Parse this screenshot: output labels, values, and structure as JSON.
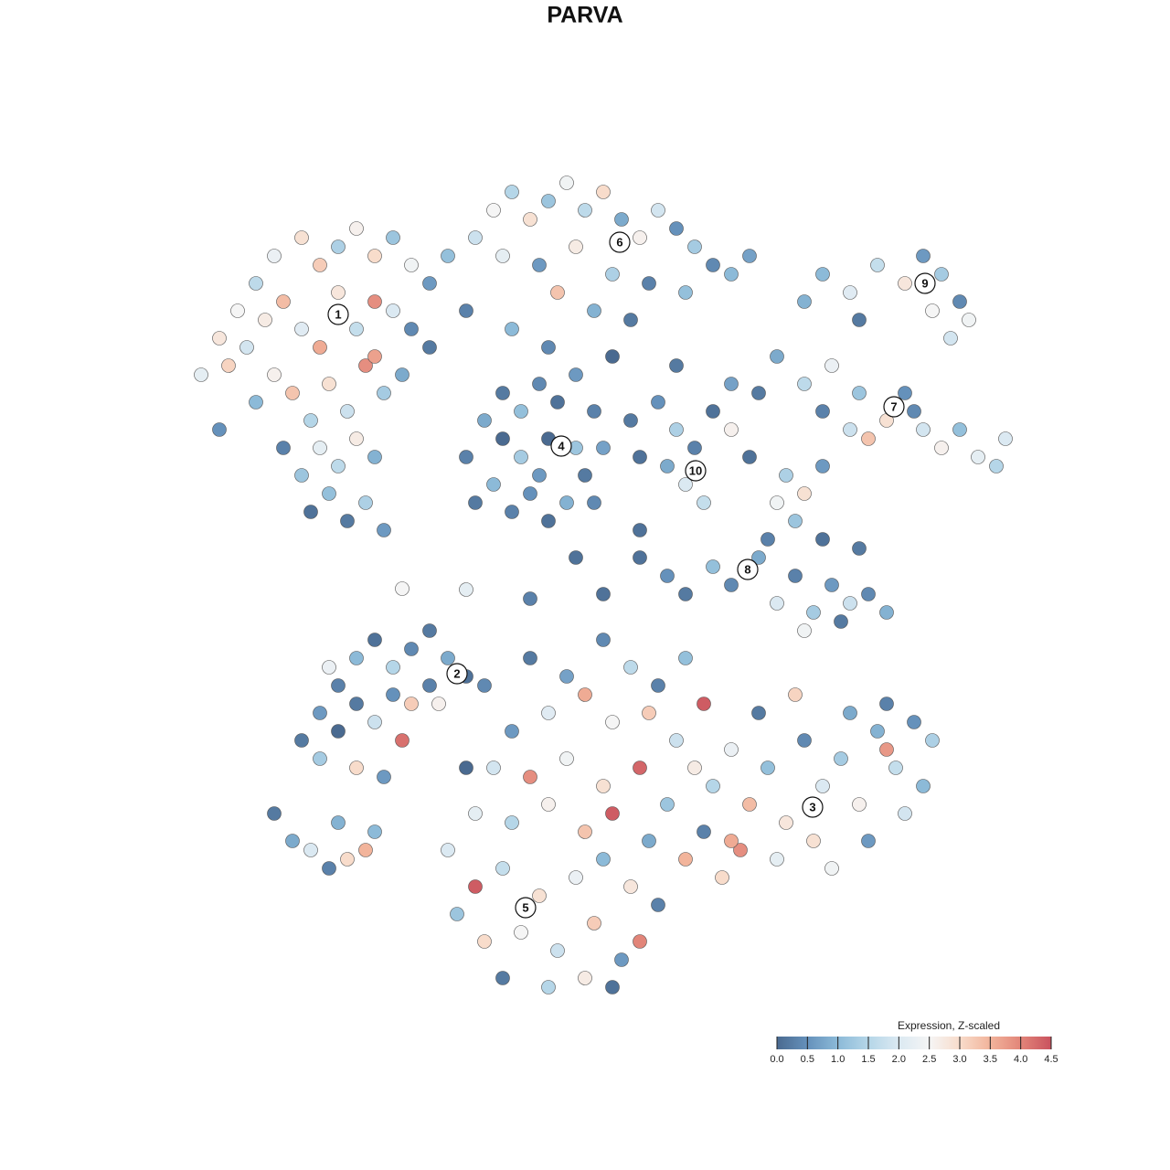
{
  "chart_data": {
    "type": "scatter",
    "title": "PARVA",
    "xlim": [
      -64,
      64
    ],
    "ylim": [
      -64,
      64
    ],
    "x": [
      -42,
      -40,
      -38,
      -36,
      -34,
      -31,
      -29,
      -27,
      -25,
      -23,
      -21,
      -19,
      -17,
      -15,
      -39,
      -37,
      -35,
      -33,
      -31,
      -29,
      -27,
      -25,
      -23,
      -21,
      -19,
      -17,
      -36,
      -34,
      -32,
      -30,
      -28,
      -26,
      -24,
      -22,
      -20,
      -33,
      -31,
      -29,
      -27,
      -25,
      -23,
      -30,
      -28,
      -26,
      -24,
      -22,
      -40,
      -23,
      -12,
      -10,
      -8,
      -6,
      -4,
      -2,
      0,
      2,
      4,
      6,
      8,
      10,
      12,
      14,
      16,
      18,
      -9,
      -5,
      -1,
      3,
      7,
      11,
      -3,
      1,
      5,
      -13,
      -8,
      -4,
      26,
      29,
      32,
      35,
      37,
      39,
      41,
      42,
      40,
      24,
      30,
      38,
      21,
      24,
      27,
      30,
      33,
      35,
      37,
      39,
      41,
      43,
      45,
      46,
      26,
      29,
      31,
      36,
      19,
      16,
      22,
      24,
      26,
      23,
      20,
      21,
      -13,
      -11,
      -9,
      -7,
      -5,
      -3,
      -1,
      1,
      2,
      0,
      -2,
      -4,
      -6,
      -8,
      -10,
      -12,
      -7,
      -4,
      -1,
      -5,
      -9,
      1,
      5,
      8,
      10,
      12,
      14,
      16,
      11,
      13,
      9,
      6,
      3,
      10,
      18,
      6,
      9,
      11,
      14,
      16,
      19,
      21,
      23,
      25,
      27,
      29,
      31,
      33,
      24,
      28,
      26,
      30,
      2,
      -13,
      -6,
      -31,
      -29,
      -27,
      -25,
      -23,
      -21,
      -19,
      -17,
      -15,
      -13,
      -29,
      -27,
      -25,
      -23,
      -21,
      -19,
      -20,
      -25,
      -22,
      -17,
      -28,
      -16,
      -34,
      -32,
      -30,
      -28,
      -26,
      -24,
      -23,
      -27,
      14,
      16,
      18,
      20,
      22,
      24,
      26,
      28,
      30,
      32,
      34,
      36,
      38,
      33,
      29,
      25,
      21,
      17,
      15,
      13,
      31,
      27,
      35,
      37,
      23,
      19,
      16,
      33,
      -6,
      -2,
      2,
      5,
      8,
      11,
      13,
      -4,
      0,
      3,
      7,
      10,
      12,
      -8,
      -10,
      -6,
      -2,
      2,
      6,
      9,
      -12,
      -8,
      -4,
      0,
      3,
      7,
      11,
      -15,
      -12,
      -9,
      -5,
      -1,
      2,
      5,
      8,
      -14,
      -11,
      -7,
      -3,
      1,
      4,
      6,
      -9,
      -4,
      0,
      3,
      -13,
      -11,
      -20,
      -1,
      6
    ],
    "y": [
      23,
      27,
      30,
      33,
      36,
      38,
      35,
      37,
      39,
      36,
      38,
      35,
      33,
      36,
      24,
      26,
      29,
      31,
      28,
      26,
      32,
      28,
      31,
      30,
      28,
      26,
      20,
      23,
      21,
      18,
      22,
      19,
      24,
      21,
      23,
      15,
      12,
      15,
      13,
      16,
      14,
      8,
      10,
      7,
      9,
      6,
      17,
      25,
      38,
      41,
      43,
      40,
      42,
      44,
      41,
      43,
      40,
      38,
      41,
      39,
      37,
      35,
      34,
      36,
      36,
      35,
      37,
      34,
      33,
      32,
      32,
      30,
      29,
      30,
      28,
      26,
      34,
      32,
      35,
      33,
      36,
      34,
      31,
      29,
      27,
      31,
      29,
      30,
      25,
      22,
      24,
      21,
      18,
      21,
      17,
      15,
      17,
      14,
      13,
      16,
      19,
      17,
      16,
      19,
      21,
      22,
      12,
      10,
      13,
      7,
      5,
      9,
      14,
      18,
      21,
      19,
      22,
      20,
      23,
      19,
      15,
      12,
      9,
      7,
      10,
      8,
      11,
      9,
      14,
      16,
      15,
      12,
      16,
      9,
      18,
      20,
      17,
      15,
      19,
      17,
      11,
      9,
      13,
      14,
      25,
      24,
      14,
      3,
      1,
      -1,
      2,
      0,
      3,
      -2,
      1,
      -3,
      0,
      -2,
      -1,
      -3,
      -5,
      -4,
      5,
      4,
      -1,
      -0.5,
      -1.5,
      -17,
      -14,
      -11,
      -8,
      -6,
      -9,
      -7,
      -5,
      -8,
      -10,
      -19,
      -16,
      -13,
      -15,
      -12,
      -13,
      -17,
      -20,
      -21,
      -11,
      -9,
      -13,
      -25,
      -28,
      -29,
      -31,
      -30,
      -29,
      -27,
      -26,
      -22,
      -18,
      -24,
      -20,
      -26,
      -17,
      -22,
      -19,
      -24,
      -16,
      -20,
      -15,
      -17,
      -13,
      -14,
      -28,
      -30,
      -29,
      -32,
      -27,
      -28,
      -31,
      -25,
      -22,
      -12,
      -14,
      -28,
      -18,
      -8,
      -10,
      -6,
      -9,
      -11,
      -8,
      -13,
      -14,
      -12,
      -15,
      -14,
      -17,
      -20,
      -16,
      -20,
      -21,
      -19,
      -22,
      -20,
      -24,
      -25,
      -26,
      -24,
      -27,
      -25,
      -28,
      -30,
      -29,
      -33,
      -31,
      -34,
      -32,
      -30,
      -33,
      -35,
      -36,
      -39,
      -38,
      -40,
      -37,
      -41,
      -39,
      -43,
      -44,
      -43,
      -44,
      -20,
      -11,
      -0.4,
      3,
      6
    ],
    "values": [
      2.2,
      2.8,
      2.5,
      1.6,
      2.3,
      2.9,
      3.2,
      1.4,
      2.6,
      3,
      1.2,
      2.4,
      0.6,
      1.1,
      3.1,
      1.9,
      2.7,
      3.4,
      2.1,
      3.6,
      2.8,
      1.7,
      3.9,
      2,
      0.4,
      0.2,
      1,
      2.6,
      3.3,
      1.5,
      2.9,
      1.8,
      3.9,
      1.3,
      0.8,
      0.3,
      1.2,
      2.2,
      1.6,
      2.7,
      0.9,
      0.1,
      1.1,
      0.2,
      1.4,
      0.6,
      0.5,
      3.7,
      1.8,
      2.5,
      1.5,
      2.9,
      1.2,
      2.4,
      1.6,
      3,
      0.8,
      2.6,
      1.9,
      0.5,
      1.3,
      0.4,
      1,
      0.7,
      2.2,
      0.6,
      2.7,
      1.4,
      0.3,
      1.1,
      3.3,
      0.9,
      0.2,
      0.3,
      1,
      0.4,
      1,
      2.1,
      1.7,
      2.8,
      0.6,
      1.3,
      0.4,
      2.4,
      1.9,
      0.9,
      0.2,
      2.5,
      0.8,
      1.6,
      2.3,
      1.2,
      2.9,
      0.5,
      1.9,
      2.6,
      1.1,
      2.2,
      1.5,
      2,
      0.3,
      1.8,
      3.3,
      0.4,
      0.2,
      0.7,
      1.4,
      2.9,
      0.6,
      1.2,
      0.3,
      2.4,
      0.3,
      0.8,
      0.2,
      1.1,
      0.4,
      0.1,
      0.6,
      0.3,
      0.7,
      0.2,
      0.9,
      0.1,
      0.5,
      0.3,
      1,
      0.2,
      1.3,
      0,
      1.2,
      0.6,
      0,
      0.4,
      0.2,
      0.5,
      1.4,
      0.3,
      0.1,
      2.6,
      2,
      1.7,
      0.8,
      0.1,
      0,
      0.2,
      0.1,
      0.1,
      0.5,
      0.2,
      1.1,
      0.4,
      0.8,
      2,
      0.3,
      1.3,
      0.6,
      1.8,
      0.4,
      0.9,
      2.4,
      0.2,
      0.1,
      0.2,
      0.1,
      2.2,
      0.3,
      0.2,
      0.6,
      0.3,
      1,
      0.1,
      1.5,
      0.4,
      0.2,
      0.8,
      0.1,
      1.3,
      0,
      0.2,
      1.8,
      0.5,
      3.2,
      4.2,
      3,
      0.6,
      0.3,
      2.3,
      2.6,
      0.2,
      0.8,
      2,
      0.3,
      3,
      3.5,
      1,
      0.9,
      1.5,
      2.3,
      3.4,
      1.1,
      2.8,
      0.4,
      2,
      1.3,
      2.6,
      0.9,
      1.7,
      0.5,
      1.4,
      0.3,
      0.8,
      2.9,
      2.2,
      3.9,
      3,
      0.3,
      0.6,
      2.4,
      1.9,
      1,
      3.1,
      0.2,
      3.6,
      3.8,
      0.2,
      0.7,
      0.4,
      1.6,
      0.3,
      1.1,
      4.4,
      2.1,
      3.6,
      2.5,
      3.2,
      1.8,
      2.7,
      0.6,
      1.9,
      3.9,
      2.4,
      2.9,
      4.3,
      1.2,
      2.2,
      1.5,
      2.6,
      3.3,
      4.4,
      0.8,
      3.5,
      2,
      4.4,
      1.7,
      2.9,
      2.3,
      1,
      2.8,
      0.3,
      1.2,
      3,
      2.5,
      1.8,
      3.2,
      0.6,
      4,
      0.2,
      1.5,
      2.7,
      0.1,
      0,
      0.4,
      2.5,
      0.1,
      0.1
    ],
    "cluster_labels": [
      {
        "label": "1",
        "x": -27,
        "y": 29.6
      },
      {
        "label": "2",
        "x": -14,
        "y": -9.7
      },
      {
        "label": "3",
        "x": 24.9,
        "y": -24.3
      },
      {
        "label": "4",
        "x": -2.6,
        "y": 15.2
      },
      {
        "label": "5",
        "x": -6.5,
        "y": -35.3
      },
      {
        "label": "6",
        "x": 3.8,
        "y": 37.5
      },
      {
        "label": "7",
        "x": 33.8,
        "y": 19.5
      },
      {
        "label": "8",
        "x": 17.8,
        "y": 1.7
      },
      {
        "label": "9",
        "x": 37.2,
        "y": 33
      },
      {
        "label": "10",
        "x": 12.1,
        "y": 12.5
      }
    ],
    "colorbar": {
      "title": "Expression, Z-scaled",
      "clim": [
        0,
        4.5
      ],
      "colormap": [
        "#4a6a90",
        "#6591bb",
        "#8cbad8",
        "#b5d6e8",
        "#dbe9f2",
        "#f5f5f5",
        "#f8dccb",
        "#f2b49b",
        "#e28579",
        "#c9525e"
      ],
      "ticks": [
        {
          "value": 0,
          "label": "0.0"
        },
        0.5,
        {
          "value": 1,
          "label": "1.0"
        },
        1.5,
        {
          "value": 2,
          "label": "2.0"
        },
        2.5,
        {
          "value": 3,
          "label": "3.0"
        },
        3.5,
        {
          "value": 4,
          "label": "4.0"
        },
        4.5
      ]
    }
  }
}
